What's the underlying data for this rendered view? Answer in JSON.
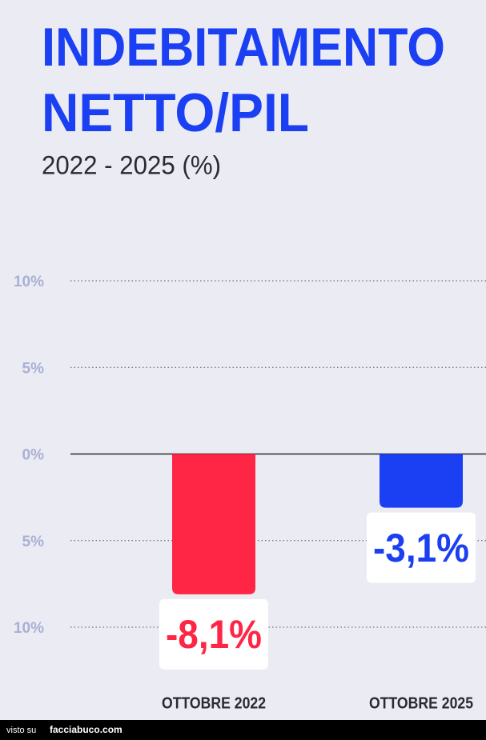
{
  "chart_data": {
    "type": "bar",
    "title": [
      "INDEBITAMENTO",
      "NETTO/PIL"
    ],
    "subtitle": "2022 - 2025 (%)",
    "categories": [
      "OTTOBRE 2022",
      "OTTOBRE 2025"
    ],
    "values": [
      -8.1,
      -3.1
    ],
    "value_labels": [
      "-8,1%",
      "-3,1%"
    ],
    "colors": [
      "#ff2545",
      "#1b3ff2"
    ],
    "ylim": [
      -10,
      10
    ],
    "yticks": [
      {
        "value": 10,
        "label": "10%"
      },
      {
        "value": 5,
        "label": "5%"
      },
      {
        "value": 0,
        "label": "0%"
      },
      {
        "value": -5,
        "label": "5%"
      },
      {
        "value": -10,
        "label": "10%"
      }
    ],
    "grid": true
  },
  "footer": {
    "text": "visto su",
    "site": "facciabuco.com"
  }
}
